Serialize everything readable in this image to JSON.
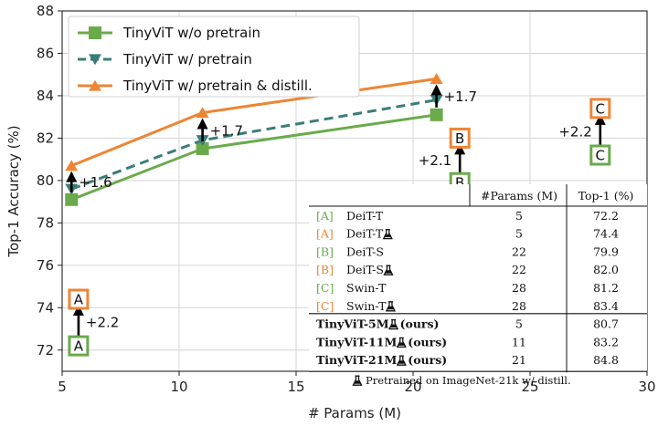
{
  "chart_data": {
    "type": "line",
    "xlabel": "# Params (M)",
    "ylabel": "Top-1 Accuracy (%)",
    "xlim": [
      5,
      30
    ],
    "ylim": [
      71,
      88
    ],
    "xticks": [
      "5",
      "10",
      "15",
      "20",
      "25",
      "30"
    ],
    "xtick_values": [
      5,
      10,
      15,
      20,
      25,
      30
    ],
    "yticks": [
      "72",
      "74",
      "76",
      "78",
      "80",
      "82",
      "84",
      "86",
      "88"
    ],
    "ytick_values": [
      72,
      74,
      76,
      78,
      80,
      82,
      84,
      86,
      88
    ],
    "grid": true,
    "legend_position": "top-left",
    "colors": {
      "green": "#6aaa4b",
      "teal": "#3a7d78",
      "orange": "#ee8534"
    },
    "series": [
      {
        "name": "TinyViT w/o pretrain",
        "marker": "square",
        "style": "solid",
        "color": "#6aaa4b",
        "x": [
          5.4,
          11,
          21
        ],
        "y": [
          79.1,
          81.5,
          83.1
        ]
      },
      {
        "name": "TinyViT w/ pretrain",
        "marker": "triangle-down",
        "style": "dashed",
        "color": "#3a7d78",
        "x": [
          5.4,
          11,
          21
        ],
        "y": [
          79.6,
          81.9,
          83.8
        ]
      },
      {
        "name": "TinyViT w/ pretrain & distill.",
        "marker": "triangle-up",
        "style": "solid",
        "color": "#ee8534",
        "x": [
          5.4,
          11,
          21
        ],
        "y": [
          80.7,
          83.2,
          84.8
        ]
      }
    ],
    "point_boxes": [
      {
        "label": "A",
        "x": 5.7,
        "y": 72.2,
        "color": "#6aaa4b"
      },
      {
        "label": "A",
        "x": 5.7,
        "y": 74.4,
        "color": "#ee8534"
      },
      {
        "label": "B",
        "x": 22,
        "y": 79.9,
        "color": "#6aaa4b"
      },
      {
        "label": "B",
        "x": 22,
        "y": 82.0,
        "color": "#ee8534"
      },
      {
        "label": "C",
        "x": 28,
        "y": 81.2,
        "color": "#6aaa4b"
      },
      {
        "label": "C",
        "x": 28,
        "y": 83.4,
        "color": "#ee8534"
      }
    ],
    "annotations": [
      {
        "text": "+1.6",
        "x": 5.4,
        "y_from": 79.1,
        "y_to": 80.7,
        "label_side": "right"
      },
      {
        "text": "+1.7",
        "x": 11,
        "y_from": 81.5,
        "y_to": 83.2,
        "label_side": "right"
      },
      {
        "text": "+1.7",
        "x": 21,
        "y_from": 83.1,
        "y_to": 84.8,
        "label_side": "right"
      },
      {
        "text": "+2.2",
        "x": 5.7,
        "y_from": 72.2,
        "y_to": 74.4,
        "label_side": "right"
      },
      {
        "text": "+2.1",
        "x": 22,
        "y_from": 79.9,
        "y_to": 82.0,
        "label_side": "left"
      },
      {
        "text": "+2.2",
        "x": 28,
        "y_from": 81.2,
        "y_to": 83.4,
        "label_side": "left"
      }
    ],
    "table": {
      "headers": [
        "#Params (M)",
        "Top-1 (%)"
      ],
      "rows": [
        {
          "tag": "[A]",
          "tag_color": "#6aaa4b",
          "model": "DeiT-T",
          "flask": false,
          "params": "5",
          "top1": "72.2",
          "bold": false
        },
        {
          "tag": "[A]",
          "tag_color": "#ee8534",
          "model": "DeiT-T",
          "flask": true,
          "params": "5",
          "top1": "74.4",
          "bold": false
        },
        {
          "tag": "[B]",
          "tag_color": "#6aaa4b",
          "model": "DeiT-S",
          "flask": false,
          "params": "22",
          "top1": "79.9",
          "bold": false
        },
        {
          "tag": "[B]",
          "tag_color": "#ee8534",
          "model": "DeiT-S",
          "flask": true,
          "params": "22",
          "top1": "82.0",
          "bold": false
        },
        {
          "tag": "[C]",
          "tag_color": "#6aaa4b",
          "model": "Swin-T",
          "flask": false,
          "params": "28",
          "top1": "81.2",
          "bold": false
        },
        {
          "tag": "[C]",
          "tag_color": "#ee8534",
          "model": "Swin-T",
          "flask": true,
          "params": "28",
          "top1": "83.4",
          "bold": false
        },
        {
          "tag": "",
          "tag_color": "",
          "model": "TinyViT-5M",
          "flask": true,
          "suffix": " (ours)",
          "params": "5",
          "top1": "80.7",
          "bold": true
        },
        {
          "tag": "",
          "tag_color": "",
          "model": "TinyViT-11M",
          "flask": true,
          "suffix": " (ours)",
          "params": "11",
          "top1": "83.2",
          "bold": true
        },
        {
          "tag": "",
          "tag_color": "",
          "model": "TinyViT-21M",
          "flask": true,
          "suffix": " (ours)",
          "params": "21",
          "top1": "84.8",
          "bold": true
        }
      ],
      "footnote": "Pretrained on ImageNet-21k w/ distill."
    }
  }
}
